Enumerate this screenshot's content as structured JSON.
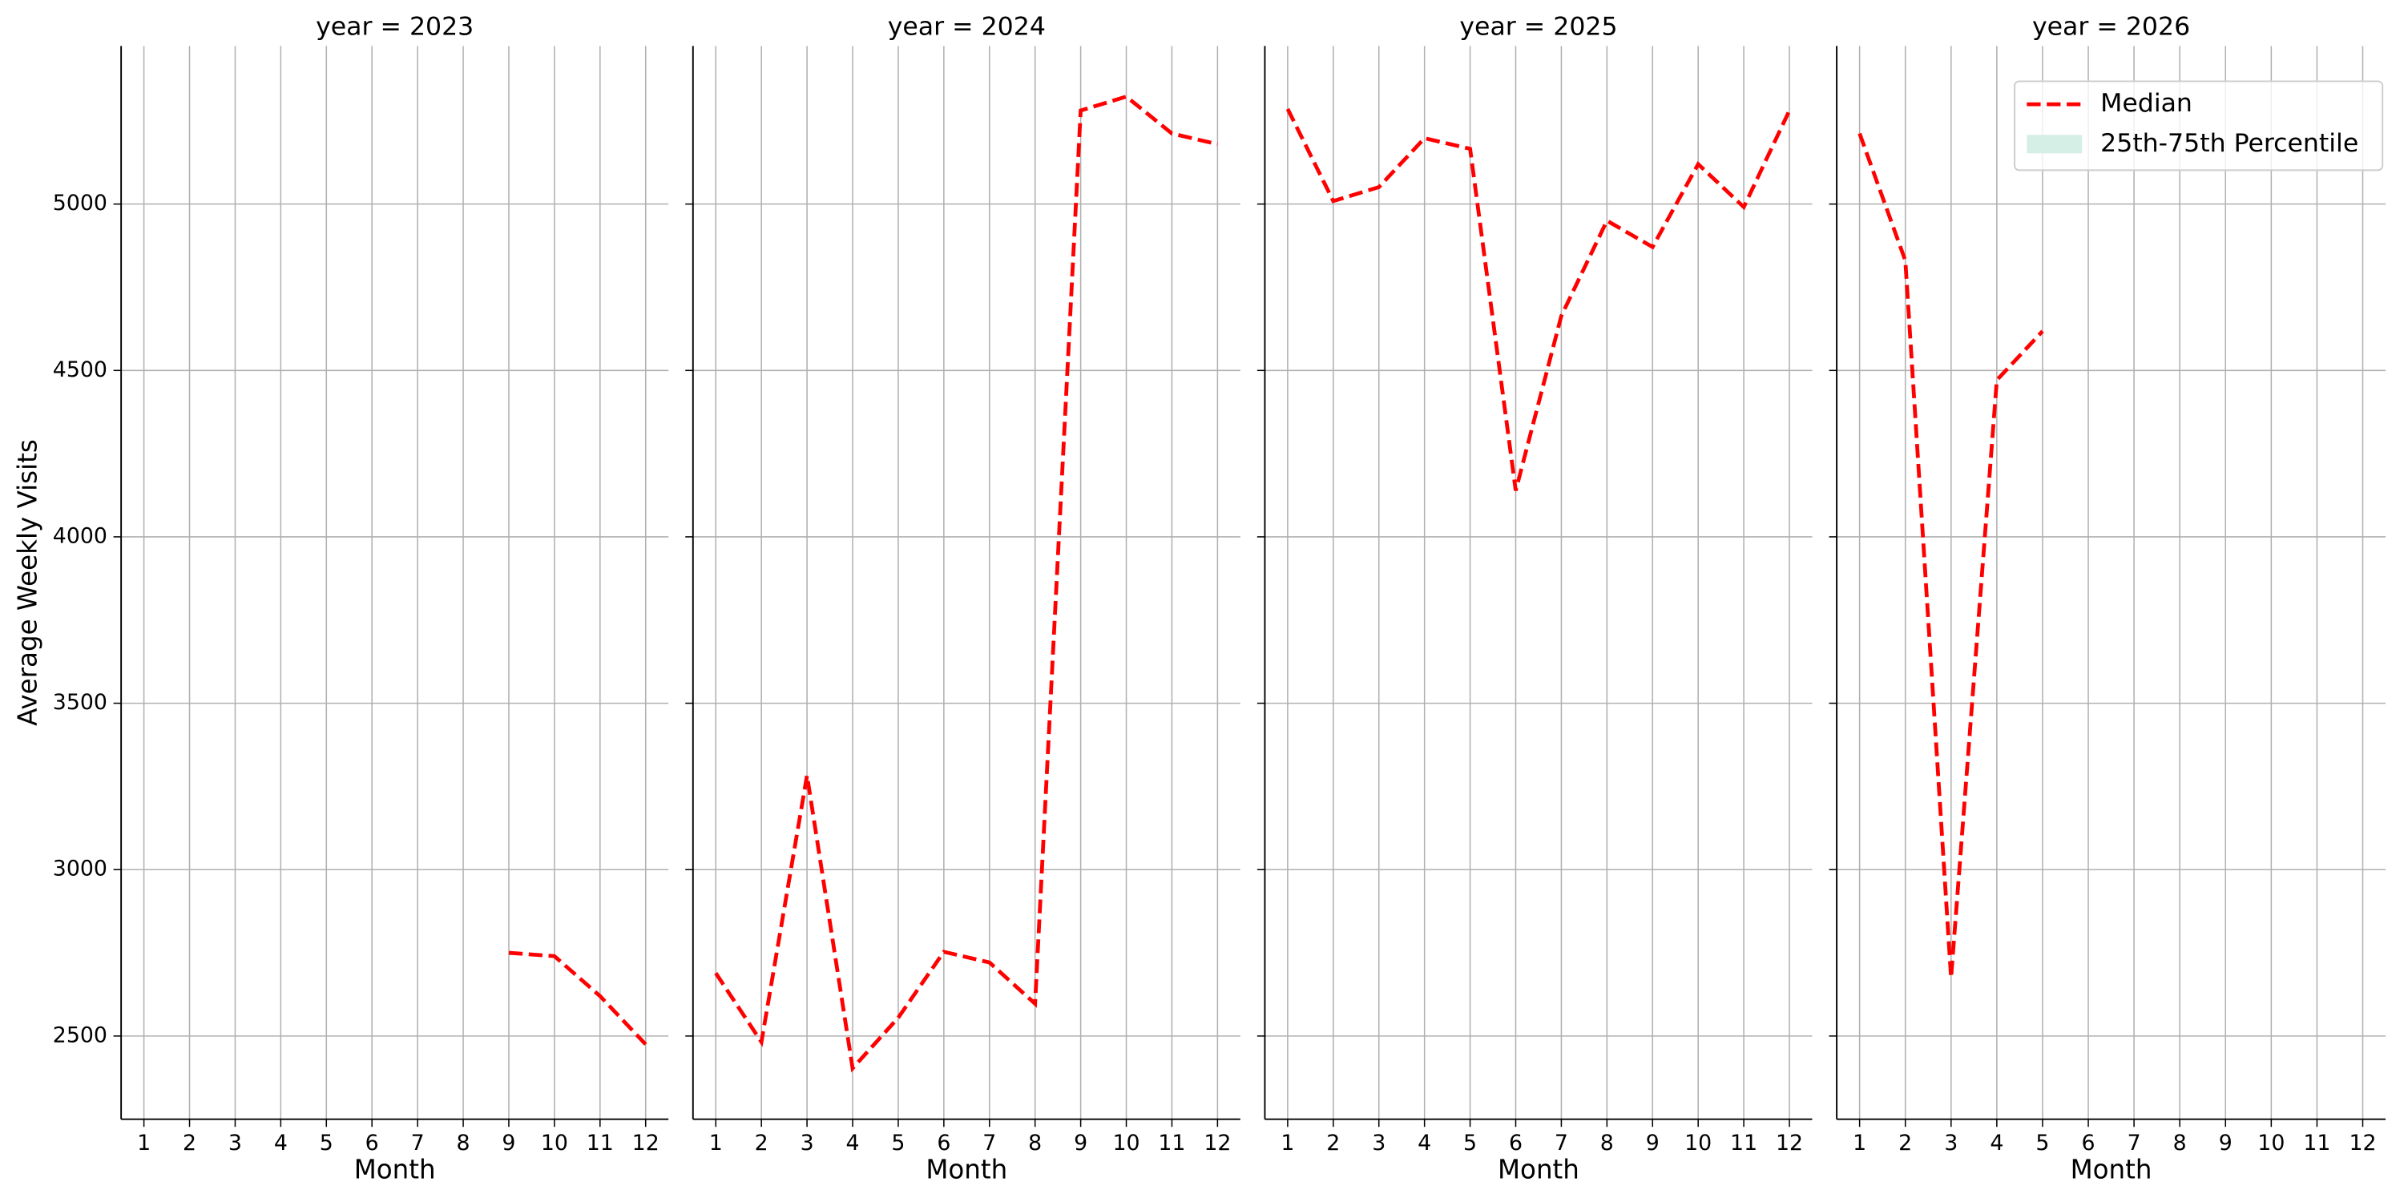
{
  "chart_data": [
    {
      "type": "line",
      "title": "year = 2023",
      "xlabel": "Month",
      "ylabel": "Average Weekly Visits",
      "show_yticklabels": true,
      "x": [
        1,
        2,
        3,
        4,
        5,
        6,
        7,
        8,
        9,
        10,
        11,
        12
      ],
      "xlim": [
        0.5,
        12.5
      ],
      "xticks": [
        1,
        2,
        3,
        4,
        5,
        6,
        7,
        8,
        9,
        10,
        11,
        12
      ],
      "ylim": [
        2250,
        5475
      ],
      "yticks": [
        2500,
        3000,
        3500,
        4000,
        4500,
        5000
      ],
      "grid": true,
      "series": [
        {
          "name": "Median",
          "color": "#ff0000",
          "style": "dashed",
          "values": [
            null,
            null,
            null,
            null,
            null,
            null,
            null,
            null,
            2750,
            2740,
            2620,
            2475
          ]
        }
      ]
    },
    {
      "type": "line",
      "title": "year = 2024",
      "xlabel": "Month",
      "show_yticklabels": false,
      "x": [
        1,
        2,
        3,
        4,
        5,
        6,
        7,
        8,
        9,
        10,
        11,
        12
      ],
      "xlim": [
        0.5,
        12.5
      ],
      "xticks": [
        1,
        2,
        3,
        4,
        5,
        6,
        7,
        8,
        9,
        10,
        11,
        12
      ],
      "ylim": [
        2250,
        5475
      ],
      "yticks": [
        2500,
        3000,
        3500,
        4000,
        4500,
        5000
      ],
      "grid": true,
      "series": [
        {
          "name": "Median",
          "color": "#ff0000",
          "style": "dashed",
          "values": [
            2689,
            2482,
            3283,
            2403,
            2555,
            2753,
            2721,
            2597,
            5281,
            5323,
            5212,
            5180
          ]
        }
      ]
    },
    {
      "type": "line",
      "title": "year = 2025",
      "xlabel": "Month",
      "show_yticklabels": false,
      "x": [
        1,
        2,
        3,
        4,
        5,
        6,
        7,
        8,
        9,
        10,
        11,
        12
      ],
      "xlim": [
        0.5,
        12.5
      ],
      "xticks": [
        1,
        2,
        3,
        4,
        5,
        6,
        7,
        8,
        9,
        10,
        11,
        12
      ],
      "ylim": [
        2250,
        5475
      ],
      "yticks": [
        2500,
        3000,
        3500,
        4000,
        4500,
        5000
      ],
      "grid": true,
      "series": [
        {
          "name": "Median",
          "color": "#ff0000",
          "style": "dashed",
          "values": [
            5286,
            5009,
            5051,
            5198,
            5166,
            4139,
            4664,
            4950,
            4871,
            5120,
            4991,
            5281
          ]
        }
      ]
    },
    {
      "type": "line",
      "title": "year = 2026",
      "xlabel": "Month",
      "show_yticklabels": false,
      "x": [
        1,
        2,
        3,
        4,
        5,
        6,
        7,
        8,
        9,
        10,
        11,
        12
      ],
      "xlim": [
        0.5,
        12.5
      ],
      "xticks": [
        1,
        2,
        3,
        4,
        5,
        6,
        7,
        8,
        9,
        10,
        11,
        12
      ],
      "ylim": [
        2250,
        5475
      ],
      "yticks": [
        2500,
        3000,
        3500,
        4000,
        4500,
        5000
      ],
      "grid": true,
      "series": [
        {
          "name": "Median",
          "color": "#ff0000",
          "style": "dashed",
          "values": [
            5212,
            4830,
            2675,
            4471,
            4618,
            null,
            null,
            null,
            null,
            null,
            null,
            null
          ]
        }
      ],
      "legend": {
        "loc": "upper right",
        "entries": [
          {
            "label": "Median",
            "color": "#ff0000",
            "style": "dashed"
          },
          {
            "label": "25th-75th Percentile",
            "color": "#d5eee6",
            "style": "patch"
          }
        ]
      }
    }
  ]
}
